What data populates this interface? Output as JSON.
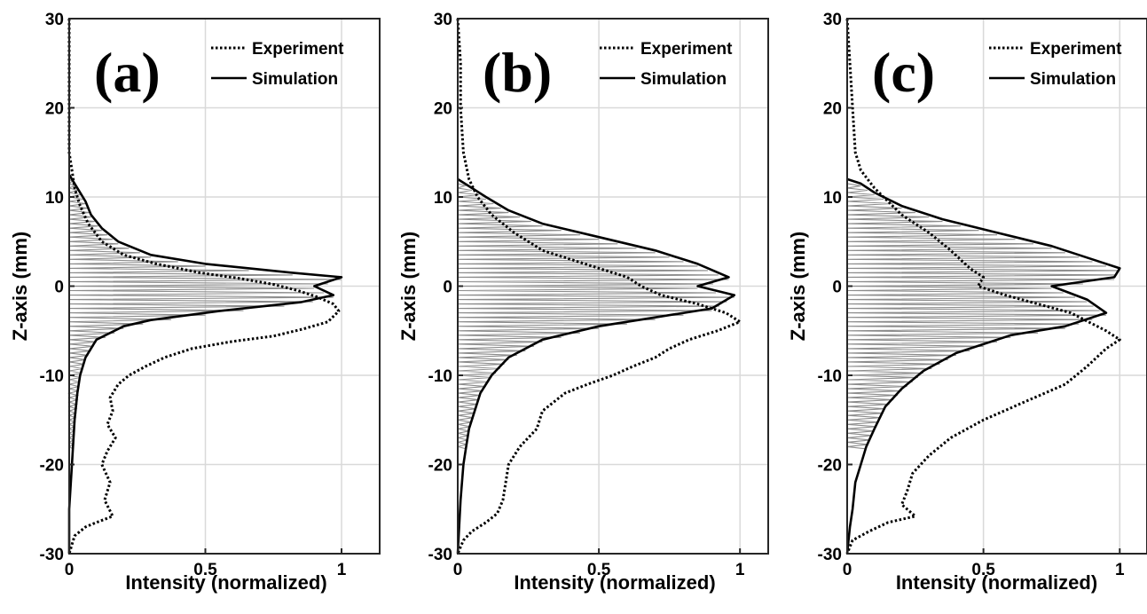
{
  "figure": {
    "xlabel": "Intensity (normalized)",
    "ylabel": "Z-axis (mm)",
    "legend": [
      "Experiment",
      "Simulation"
    ]
  },
  "chart_data": [
    {
      "type": "line",
      "panel_label": "(a)",
      "xlabel": "Intensity (normalized)",
      "ylabel": "Z-axis (mm)",
      "xlim": [
        0,
        1.14
      ],
      "ylim": [
        -30,
        30
      ],
      "xticks": [
        "0",
        "0.5",
        "1"
      ],
      "yticks": [
        "-30",
        "-20",
        "-10",
        "0",
        "10",
        "20",
        "30"
      ],
      "grid": true,
      "legend_position": "top-right",
      "series": [
        {
          "name": "Experiment",
          "style": "dotted",
          "points": [
            [
              0.0,
              30
            ],
            [
              0.0,
              25
            ],
            [
              0.0,
              20
            ],
            [
              0.0,
              15
            ],
            [
              0.01,
              13
            ],
            [
              0.02,
              11
            ],
            [
              0.04,
              9
            ],
            [
              0.07,
              7
            ],
            [
              0.12,
              5
            ],
            [
              0.2,
              3.5
            ],
            [
              0.32,
              2.5
            ],
            [
              0.48,
              1.5
            ],
            [
              0.62,
              0.9
            ],
            [
              0.75,
              0.2
            ],
            [
              0.84,
              -0.5
            ],
            [
              0.91,
              -1.2
            ],
            [
              0.97,
              -2.0
            ],
            [
              0.99,
              -2.8
            ],
            [
              0.95,
              -4.0
            ],
            [
              0.86,
              -4.8
            ],
            [
              0.75,
              -5.6
            ],
            [
              0.6,
              -6.2
            ],
            [
              0.45,
              -7.0
            ],
            [
              0.35,
              -8.0
            ],
            [
              0.28,
              -9.0
            ],
            [
              0.22,
              -10.0
            ],
            [
              0.18,
              -11.0
            ],
            [
              0.15,
              -12.5
            ],
            [
              0.16,
              -14.0
            ],
            [
              0.14,
              -15.5
            ],
            [
              0.17,
              -17.0
            ],
            [
              0.14,
              -18.5
            ],
            [
              0.12,
              -20.0
            ],
            [
              0.15,
              -22.0
            ],
            [
              0.13,
              -24.0
            ],
            [
              0.16,
              -25.8
            ],
            [
              0.1,
              -26.5
            ],
            [
              0.06,
              -27.0
            ],
            [
              0.02,
              -28.0
            ],
            [
              0.0,
              -30
            ]
          ]
        },
        {
          "name": "Simulation",
          "style": "solid",
          "points": [
            [
              0.0,
              12.5
            ],
            [
              0.03,
              11.0
            ],
            [
              0.06,
              9.5
            ],
            [
              0.08,
              8.0
            ],
            [
              0.12,
              6.5
            ],
            [
              0.18,
              5.0
            ],
            [
              0.3,
              3.5
            ],
            [
              0.5,
              2.5
            ],
            [
              0.82,
              1.5
            ],
            [
              1.0,
              1.0
            ],
            [
              0.9,
              0.0
            ],
            [
              0.97,
              -1.0
            ],
            [
              0.85,
              -1.8
            ],
            [
              0.55,
              -2.8
            ],
            [
              0.3,
              -3.8
            ],
            [
              0.2,
              -4.5
            ],
            [
              0.1,
              -6.0
            ],
            [
              0.06,
              -8.0
            ],
            [
              0.04,
              -10.0
            ],
            [
              0.03,
              -12.0
            ],
            [
              0.02,
              -15.0
            ],
            [
              0.01,
              -20.0
            ],
            [
              0.0,
              -25.0
            ],
            [
              0.0,
              -30.0
            ]
          ]
        }
      ]
    },
    {
      "type": "line",
      "panel_label": "(b)",
      "xlabel": "Intensity (normalized)",
      "ylabel": "Z-axis (mm)",
      "xlim": [
        0,
        1.1
      ],
      "ylim": [
        -30,
        30
      ],
      "xticks": [
        "0",
        "0.5",
        "1"
      ],
      "yticks": [
        "-30",
        "-20",
        "-10",
        "0",
        "10",
        "20",
        "30"
      ],
      "grid": true,
      "legend_position": "top-right",
      "series": [
        {
          "name": "Experiment",
          "style": "dotted",
          "points": [
            [
              0.0,
              30
            ],
            [
              0.01,
              25
            ],
            [
              0.01,
              20
            ],
            [
              0.02,
              15
            ],
            [
              0.04,
              12
            ],
            [
              0.07,
              10
            ],
            [
              0.12,
              8
            ],
            [
              0.2,
              6
            ],
            [
              0.3,
              4
            ],
            [
              0.4,
              3
            ],
            [
              0.5,
              2
            ],
            [
              0.6,
              1
            ],
            [
              0.65,
              0
            ],
            [
              0.72,
              -1
            ],
            [
              0.85,
              -2
            ],
            [
              0.95,
              -3
            ],
            [
              1.0,
              -4
            ],
            [
              0.92,
              -5
            ],
            [
              0.82,
              -6
            ],
            [
              0.75,
              -7
            ],
            [
              0.7,
              -8
            ],
            [
              0.62,
              -9
            ],
            [
              0.55,
              -10
            ],
            [
              0.46,
              -11
            ],
            [
              0.38,
              -12
            ],
            [
              0.3,
              -14
            ],
            [
              0.28,
              -16
            ],
            [
              0.22,
              -18
            ],
            [
              0.18,
              -20
            ],
            [
              0.17,
              -22
            ],
            [
              0.16,
              -24
            ],
            [
              0.14,
              -25.5
            ],
            [
              0.1,
              -26.5
            ],
            [
              0.05,
              -27.5
            ],
            [
              0.02,
              -28.5
            ],
            [
              0.0,
              -30
            ]
          ]
        },
        {
          "name": "Simulation",
          "style": "solid",
          "points": [
            [
              0.0,
              12.0
            ],
            [
              0.05,
              11.0
            ],
            [
              0.1,
              10.0
            ],
            [
              0.18,
              8.5
            ],
            [
              0.3,
              7.0
            ],
            [
              0.5,
              5.5
            ],
            [
              0.7,
              4.0
            ],
            [
              0.85,
              2.5
            ],
            [
              0.96,
              1.0
            ],
            [
              0.85,
              0.0
            ],
            [
              0.98,
              -1.0
            ],
            [
              0.9,
              -2.5
            ],
            [
              0.7,
              -3.5
            ],
            [
              0.5,
              -4.5
            ],
            [
              0.3,
              -6.0
            ],
            [
              0.18,
              -8.0
            ],
            [
              0.12,
              -10.0
            ],
            [
              0.08,
              -12.0
            ],
            [
              0.06,
              -14.0
            ],
            [
              0.04,
              -16.0
            ],
            [
              0.03,
              -18.0
            ],
            [
              0.02,
              -20.0
            ],
            [
              0.01,
              -24.0
            ],
            [
              0.0,
              -30.0
            ]
          ]
        }
      ]
    },
    {
      "type": "line",
      "panel_label": "(c)",
      "xlabel": "Intensity (normalized)",
      "ylabel": "Z-axis (mm)",
      "xlim": [
        0,
        1.1
      ],
      "ylim": [
        -30,
        30
      ],
      "xticks": [
        "0",
        "0.5",
        "1"
      ],
      "yticks": [
        "-30",
        "-20",
        "-10",
        "0",
        "10",
        "20",
        "30"
      ],
      "grid": true,
      "legend_position": "top-right",
      "series": [
        {
          "name": "Experiment",
          "style": "dotted",
          "points": [
            [
              0.0,
              30
            ],
            [
              0.01,
              25
            ],
            [
              0.02,
              20
            ],
            [
              0.03,
              15
            ],
            [
              0.05,
              13
            ],
            [
              0.1,
              11
            ],
            [
              0.2,
              8
            ],
            [
              0.3,
              6
            ],
            [
              0.38,
              4
            ],
            [
              0.45,
              2
            ],
            [
              0.5,
              1
            ],
            [
              0.48,
              0
            ],
            [
              0.58,
              -1
            ],
            [
              0.7,
              -2
            ],
            [
              0.82,
              -3
            ],
            [
              0.95,
              -5
            ],
            [
              1.0,
              -6
            ],
            [
              0.95,
              -7
            ],
            [
              0.88,
              -9
            ],
            [
              0.8,
              -11
            ],
            [
              0.65,
              -13
            ],
            [
              0.5,
              -15
            ],
            [
              0.38,
              -17
            ],
            [
              0.3,
              -19
            ],
            [
              0.24,
              -21
            ],
            [
              0.22,
              -23
            ],
            [
              0.2,
              -24.5
            ],
            [
              0.25,
              -25.8
            ],
            [
              0.15,
              -26.5
            ],
            [
              0.08,
              -27.5
            ],
            [
              0.02,
              -28.5
            ],
            [
              0.0,
              -30
            ]
          ]
        },
        {
          "name": "Simulation",
          "style": "solid",
          "points": [
            [
              0.0,
              12.0
            ],
            [
              0.05,
              11.5
            ],
            [
              0.1,
              10.5
            ],
            [
              0.2,
              9.0
            ],
            [
              0.35,
              7.5
            ],
            [
              0.55,
              6.0
            ],
            [
              0.75,
              4.5
            ],
            [
              0.9,
              3.0
            ],
            [
              1.0,
              2.0
            ],
            [
              0.98,
              1.0
            ],
            [
              0.75,
              0.0
            ],
            [
              0.88,
              -1.5
            ],
            [
              0.95,
              -3.0
            ],
            [
              0.8,
              -4.5
            ],
            [
              0.6,
              -5.5
            ],
            [
              0.4,
              -7.5
            ],
            [
              0.28,
              -9.5
            ],
            [
              0.2,
              -11.5
            ],
            [
              0.14,
              -13.5
            ],
            [
              0.1,
              -16.0
            ],
            [
              0.07,
              -18.0
            ],
            [
              0.05,
              -20.0
            ],
            [
              0.03,
              -22.0
            ],
            [
              0.02,
              -25.0
            ],
            [
              0.01,
              -27.0
            ],
            [
              0.0,
              -30.0
            ]
          ]
        }
      ]
    }
  ]
}
